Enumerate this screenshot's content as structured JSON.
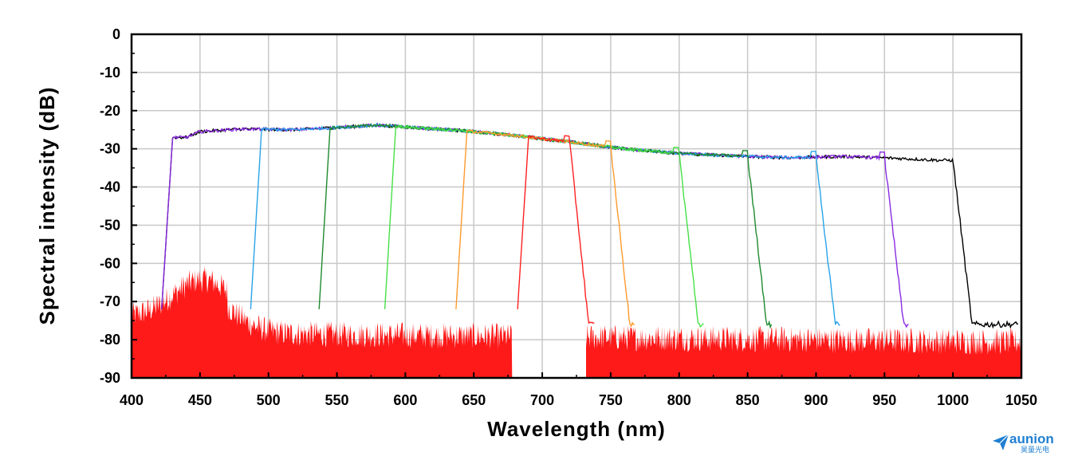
{
  "chart_data": {
    "type": "line",
    "xlabel": "Wavelength (nm)",
    "ylabel": "Spectral intensity (dB)",
    "xlim": [
      400,
      1050
    ],
    "ylim": [
      -90,
      0
    ],
    "xticks": [
      400,
      450,
      500,
      550,
      600,
      650,
      700,
      750,
      800,
      850,
      900,
      950,
      1000,
      1050
    ],
    "yticks": [
      0,
      -10,
      -20,
      -30,
      -40,
      -50,
      -60,
      -70,
      -80,
      -90
    ],
    "grid": true,
    "legend": "none",
    "noise_floor_db": -78,
    "series": [
      {
        "color": "#000000",
        "cut_on_nm": 430,
        "cut_off_nm": 1000
      },
      {
        "color": "#8a2be2",
        "cut_on_nm": 430,
        "cut_off_nm": 950
      },
      {
        "color": "#29a3e8",
        "cut_on_nm": 495,
        "cut_off_nm": 900
      },
      {
        "color": "#1e8a2e",
        "cut_on_nm": 545,
        "cut_off_nm": 850
      },
      {
        "color": "#46e046",
        "cut_on_nm": 593,
        "cut_off_nm": 800
      },
      {
        "color": "#ff9a2e",
        "cut_on_nm": 645,
        "cut_off_nm": 750
      },
      {
        "color": "#ff2020",
        "cut_on_nm": 690,
        "cut_off_nm": 720
      }
    ],
    "upper_envelope": {
      "x": [
        440,
        450,
        480,
        520,
        560,
        580,
        600,
        640,
        680,
        720,
        760,
        800,
        850,
        880,
        920,
        960,
        990
      ],
      "y": [
        -27,
        -25.5,
        -24.8,
        -25,
        -24.2,
        -23.8,
        -24.3,
        -25.2,
        -26.5,
        -28.2,
        -30,
        -31.2,
        -32,
        -32.3,
        -32,
        -32.5,
        -33
      ]
    }
  },
  "logo": {
    "name": "aunion",
    "subtitle": "昊量光电"
  },
  "colors": {
    "noise": "#ff1a1a",
    "grid": "#c8c8c8",
    "axis": "#000000",
    "brand": "#1f7fd1"
  }
}
